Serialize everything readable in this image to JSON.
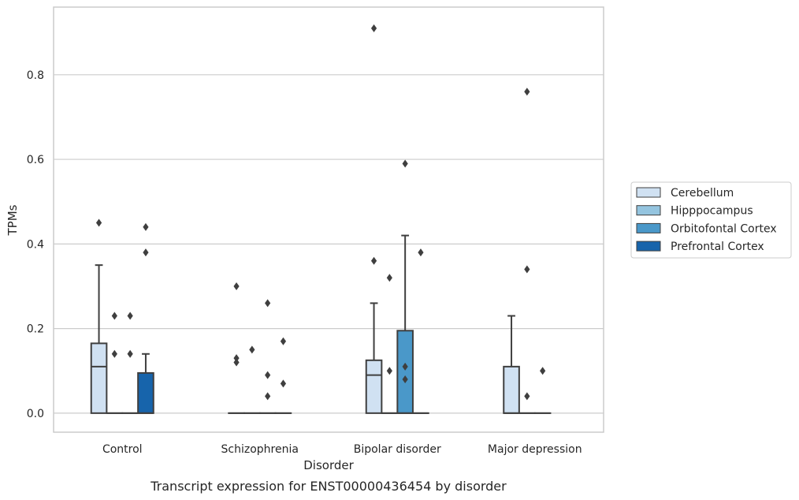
{
  "caption": "Transcript expression for ENST00000436454 by disorder",
  "chart_data": {
    "type": "box",
    "title": "",
    "xlabel": "Disorder",
    "ylabel": "TPMs",
    "ylim": [
      -0.045,
      0.96
    ],
    "yticks": [
      0.0,
      0.2,
      0.4,
      0.6,
      0.8
    ],
    "ytick_labels": [
      "0.0",
      "0.2",
      "0.4",
      "0.6",
      "0.8"
    ],
    "grid": "horizontal",
    "legend_position": "right",
    "categories": [
      "Control",
      "Schizophrenia",
      "Bipolar disorder",
      "Major depression"
    ],
    "series": [
      {
        "name": "Cerebellum",
        "color": "#d0e1f2",
        "boxes": [
          {
            "q1": 0.0,
            "median": 0.11,
            "q3": 0.165,
            "whislo": 0.0,
            "whishi": 0.35,
            "fliers": [
              0.45
            ]
          },
          {
            "q1": 0.0,
            "median": 0.0,
            "q3": 0.0,
            "whislo": 0.0,
            "whishi": 0.0,
            "fliers": [
              0.3,
              0.13,
              0.12
            ]
          },
          {
            "q1": 0.0,
            "median": 0.09,
            "q3": 0.125,
            "whislo": 0.0,
            "whishi": 0.26,
            "fliers": [
              0.91,
              0.36
            ]
          },
          {
            "q1": 0.0,
            "median": 0.0,
            "q3": 0.11,
            "whislo": 0.0,
            "whishi": 0.23,
            "fliers": []
          }
        ]
      },
      {
        "name": "Hipppocampus",
        "color": "#94c4df",
        "boxes": [
          {
            "q1": 0.0,
            "median": 0.0,
            "q3": 0.0,
            "whislo": 0.0,
            "whishi": 0.0,
            "fliers": [
              0.23,
              0.14
            ]
          },
          {
            "q1": 0.0,
            "median": 0.0,
            "q3": 0.0,
            "whislo": 0.0,
            "whishi": 0.0,
            "fliers": [
              0.15
            ]
          },
          {
            "q1": 0.0,
            "median": 0.0,
            "q3": 0.0,
            "whislo": 0.0,
            "whishi": 0.0,
            "fliers": [
              0.32,
              0.1
            ]
          },
          {
            "q1": 0.0,
            "median": 0.0,
            "q3": 0.0,
            "whislo": 0.0,
            "whishi": 0.0,
            "fliers": [
              0.76,
              0.34,
              0.04
            ]
          }
        ]
      },
      {
        "name": "Orbitofontal Cortex",
        "color": "#4a98c9",
        "boxes": [
          {
            "q1": 0.0,
            "median": 0.0,
            "q3": 0.0,
            "whislo": 0.0,
            "whishi": 0.0,
            "fliers": [
              0.23,
              0.14
            ]
          },
          {
            "q1": 0.0,
            "median": 0.0,
            "q3": 0.0,
            "whislo": 0.0,
            "whishi": 0.0,
            "fliers": [
              0.26,
              0.09,
              0.04
            ]
          },
          {
            "q1": 0.0,
            "median": 0.0,
            "q3": 0.195,
            "whislo": 0.0,
            "whishi": 0.42,
            "fliers": [
              0.59,
              0.11,
              0.08
            ]
          },
          {
            "q1": 0.0,
            "median": 0.0,
            "q3": 0.0,
            "whislo": 0.0,
            "whishi": 0.0,
            "fliers": [
              0.1
            ]
          }
        ]
      },
      {
        "name": "Prefrontal Cortex",
        "color": "#1764ab",
        "boxes": [
          {
            "q1": 0.0,
            "median": 0.0,
            "q3": 0.095,
            "whislo": 0.0,
            "whishi": 0.14,
            "fliers": [
              0.44,
              0.38
            ]
          },
          {
            "q1": 0.0,
            "median": 0.0,
            "q3": 0.0,
            "whislo": 0.0,
            "whishi": 0.0,
            "fliers": [
              0.17,
              0.07
            ]
          },
          {
            "q1": 0.0,
            "median": 0.0,
            "q3": 0.0,
            "whislo": 0.0,
            "whishi": 0.0,
            "fliers": [
              0.38
            ]
          },
          null
        ]
      }
    ]
  }
}
